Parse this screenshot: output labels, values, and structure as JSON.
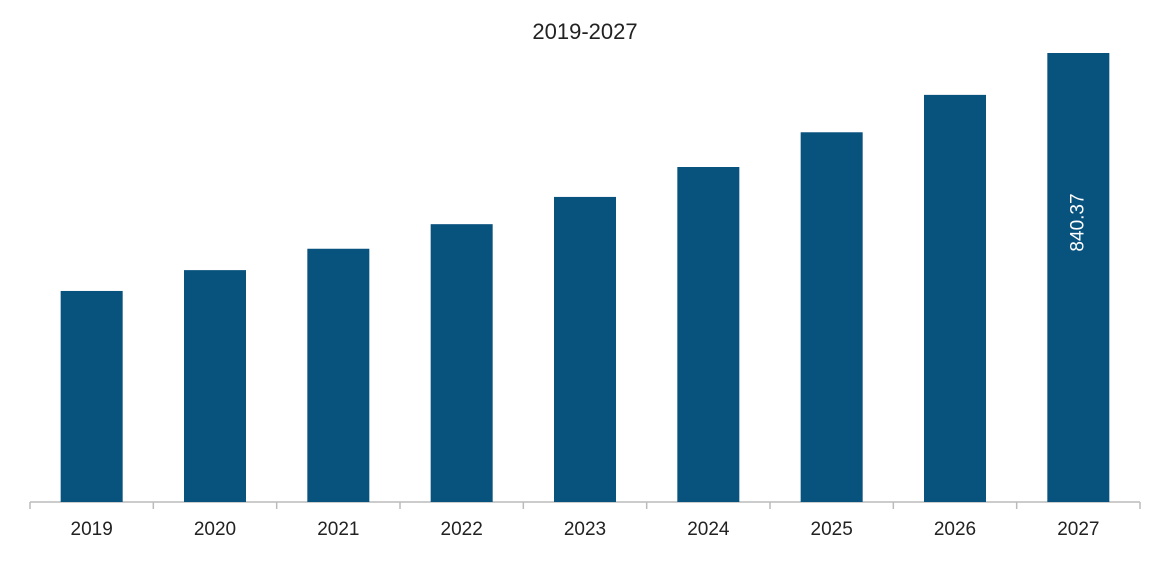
{
  "chart_data": {
    "type": "bar",
    "title": "2019-2027",
    "categories": [
      "2019",
      "2020",
      "2021",
      "2022",
      "2023",
      "2024",
      "2025",
      "2026",
      "2027"
    ],
    "values": [
      395,
      434,
      474,
      520,
      571,
      627,
      692,
      762,
      840.37
    ],
    "value_labels": [
      null,
      null,
      null,
      null,
      null,
      null,
      null,
      null,
      "840.37"
    ],
    "color": "#08527e"
  }
}
